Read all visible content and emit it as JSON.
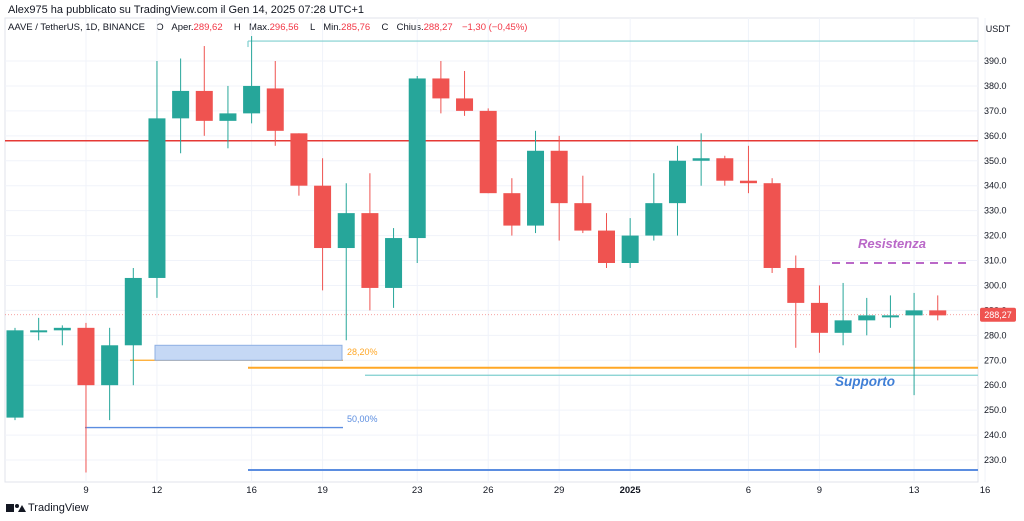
{
  "header": {
    "publisher": "Alex975 ha pubblicato su TradingView.com il Gen 14, 2025 07:28 UTC+1",
    "symbol": "AAVE / TetherUS, 1D, BINANCE",
    "open_label": "O",
    "open_text": "Aper.",
    "open_value": "289,62",
    "high_label": "H",
    "high_text": "Max.",
    "high_value": "296,56",
    "low_label": "L",
    "low_text": "Min.",
    "low_value": "285,76",
    "close_label": "C",
    "close_text": "Chius.",
    "close_value": "288,27",
    "change_value": "−1,30 (−0,45%)"
  },
  "footer": {
    "brand": "TradingView"
  },
  "colors": {
    "up": "#26a69a",
    "down": "#ef5350",
    "resistance_line": "#e53935",
    "resistenza_label": "#ba68c8",
    "supporto_label": "#3f7fd6",
    "fib_orange": "#ffa726",
    "fib_blue": "#5b8de0",
    "teal_line": "#7fcfcf"
  },
  "chart_data": {
    "type": "candlestick",
    "currency": "USDT",
    "ylim": [
      221,
      400
    ],
    "y_ticks": [
      230,
      240,
      250,
      260,
      270,
      280,
      290,
      300,
      310,
      320,
      330,
      340,
      350,
      360,
      370,
      380,
      390
    ],
    "x_ticks": [
      "9",
      "12",
      "16",
      "19",
      "23",
      "26",
      "29",
      "2025",
      "6",
      "9",
      "13",
      "16"
    ],
    "last_price": "288,27",
    "candles": [
      {
        "o": 247,
        "h": 283,
        "l": 246,
        "c": 282
      },
      {
        "o": 282,
        "h": 287,
        "l": 278,
        "c": 282
      },
      {
        "o": 282,
        "h": 284,
        "l": 276,
        "c": 283
      },
      {
        "o": 283,
        "h": 285,
        "l": 225,
        "c": 260
      },
      {
        "o": 260,
        "h": 283,
        "l": 246,
        "c": 276
      },
      {
        "o": 276,
        "h": 307,
        "l": 260,
        "c": 303
      },
      {
        "o": 303,
        "h": 390,
        "l": 295,
        "c": 367
      },
      {
        "o": 367,
        "h": 391,
        "l": 353,
        "c": 378
      },
      {
        "o": 378,
        "h": 396,
        "l": 360,
        "c": 366
      },
      {
        "o": 366,
        "h": 380,
        "l": 355,
        "c": 369
      },
      {
        "o": 369,
        "h": 400,
        "l": 365,
        "c": 380
      },
      {
        "o": 379,
        "h": 390,
        "l": 356,
        "c": 362
      },
      {
        "o": 361,
        "h": 361,
        "l": 336,
        "c": 340
      },
      {
        "o": 340,
        "h": 351,
        "l": 298,
        "c": 315
      },
      {
        "o": 315,
        "h": 341,
        "l": 278,
        "c": 329
      },
      {
        "o": 329,
        "h": 345,
        "l": 290,
        "c": 299
      },
      {
        "o": 299,
        "h": 323,
        "l": 291,
        "c": 319
      },
      {
        "o": 319,
        "h": 384,
        "l": 309,
        "c": 383
      },
      {
        "o": 383,
        "h": 390,
        "l": 369,
        "c": 375
      },
      {
        "o": 375,
        "h": 386,
        "l": 368,
        "c": 370
      },
      {
        "o": 370,
        "h": 371,
        "l": 337,
        "c": 337
      },
      {
        "o": 337,
        "h": 343,
        "l": 320,
        "c": 324
      },
      {
        "o": 324,
        "h": 362,
        "l": 321,
        "c": 354
      },
      {
        "o": 354,
        "h": 360,
        "l": 318,
        "c": 333
      },
      {
        "o": 333,
        "h": 344,
        "l": 321,
        "c": 322
      },
      {
        "o": 322,
        "h": 329,
        "l": 307,
        "c": 309
      },
      {
        "o": 309,
        "h": 327,
        "l": 307,
        "c": 320
      },
      {
        "o": 320,
        "h": 345,
        "l": 318,
        "c": 333
      },
      {
        "o": 333,
        "h": 356,
        "l": 320,
        "c": 350
      },
      {
        "o": 350,
        "h": 361,
        "l": 340,
        "c": 351
      },
      {
        "o": 351,
        "h": 352,
        "l": 340,
        "c": 342
      },
      {
        "o": 342,
        "h": 356,
        "l": 337,
        "c": 341
      },
      {
        "o": 341,
        "h": 343,
        "l": 305,
        "c": 307
      },
      {
        "o": 307,
        "h": 312,
        "l": 275,
        "c": 293
      },
      {
        "o": 293,
        "h": 300,
        "l": 273,
        "c": 281
      },
      {
        "o": 281,
        "h": 301,
        "l": 276,
        "c": 286
      },
      {
        "o": 286,
        "h": 295,
        "l": 280,
        "c": 288
      },
      {
        "o": 288,
        "h": 296,
        "l": 283,
        "c": 288
      },
      {
        "o": 288,
        "h": 297,
        "l": 256,
        "c": 290
      },
      {
        "o": 290,
        "h": 296,
        "l": 286,
        "c": 288
      }
    ],
    "lines": {
      "resistance": 358,
      "resistenza_dashed": 309,
      "fib_2820": 270,
      "fib_orange_long": 267,
      "teal_support": 264,
      "fib_50": 243,
      "bottom_blue": 226,
      "top_teal": 398
    },
    "box": {
      "top": 276,
      "bottom": 270
    },
    "annotations": {
      "resistenza": "Resistenza",
      "supporto": "Supporto",
      "fib_2820": "28,20%",
      "fib_50": "50,00%"
    }
  }
}
